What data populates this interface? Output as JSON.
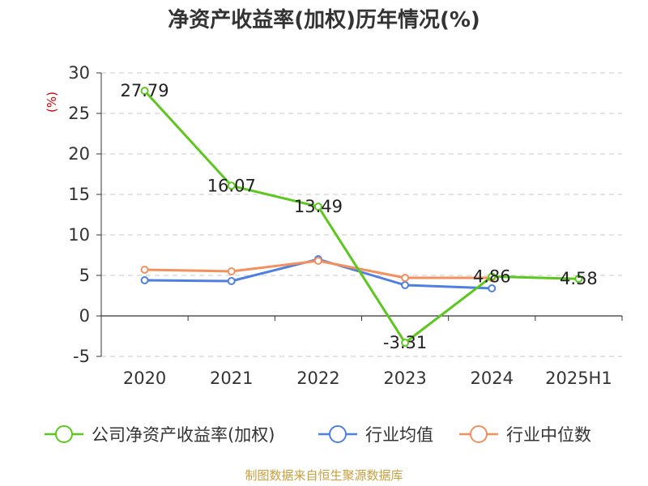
{
  "chart_data": {
    "type": "line",
    "title": "净资产收益率(加权)历年情况(%)",
    "ylabel": "(%)",
    "categories": [
      "2020",
      "2021",
      "2022",
      "2023",
      "2024",
      "2025H1"
    ],
    "ylim": [
      -5,
      30
    ],
    "yticks": [
      -5,
      0,
      5,
      10,
      15,
      20,
      25,
      30
    ],
    "grid": true,
    "legend_position": "bottom",
    "series": [
      {
        "name": "公司净资产收益率(加权)",
        "color": "#5cc71e",
        "values": [
          27.79,
          16.07,
          13.49,
          -3.31,
          4.86,
          4.58
        ],
        "labels": [
          "27.79",
          "16.07",
          "13.49",
          "-3.31",
          "4.86",
          "4.58"
        ]
      },
      {
        "name": "行业均值",
        "color": "#4f7fe0",
        "values": [
          4.4,
          4.3,
          7.0,
          3.8,
          3.4,
          null
        ]
      },
      {
        "name": "行业中位数",
        "color": "#f3905d",
        "values": [
          5.7,
          5.5,
          6.8,
          4.7,
          4.7,
          null
        ]
      }
    ]
  },
  "source": "制图数据来自恒生聚源数据库"
}
